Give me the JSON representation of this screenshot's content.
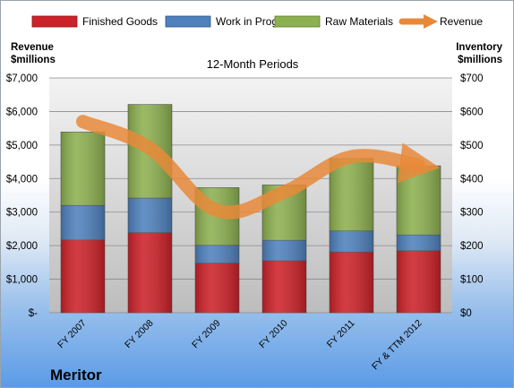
{
  "chart_data": {
    "type": "bar",
    "stacked": true,
    "title": "12-Month Periods",
    "company": "Meritor",
    "left_axis_label": [
      "Revenue",
      "$millions"
    ],
    "right_axis_label": [
      "Inventory",
      "$millions"
    ],
    "left_axis_ticks": [
      "$-",
      "$1,000",
      "$2,000",
      "$3,000",
      "$4,000",
      "$5,000",
      "$6,000",
      "$7,000"
    ],
    "right_axis_ticks": [
      "$0",
      "$100",
      "$200",
      "$300",
      "$400",
      "$500",
      "$600",
      "$700"
    ],
    "left_ylim": [
      0,
      7000
    ],
    "right_ylim": [
      0,
      700
    ],
    "grid": true,
    "legend_position": "top",
    "categories": [
      "FY 2007",
      "FY 2008",
      "FY 2009",
      "FY 2010",
      "FY 2011",
      "FY & TTM 2012"
    ],
    "series": [
      {
        "name": "Finished Goods",
        "axis": "right",
        "color": "#cc2229",
        "values": [
          217,
          239,
          148,
          155,
          181,
          185
        ]
      },
      {
        "name": "Work in Progress",
        "axis": "right",
        "color": "#4f81bd",
        "values": [
          103,
          103,
          53,
          61,
          63,
          47
        ]
      },
      {
        "name": "Raw Materials",
        "axis": "right",
        "color": "#8db050",
        "values": [
          219,
          279,
          172,
          165,
          216,
          206
        ]
      },
      {
        "name": "Revenue",
        "axis": "left",
        "type": "line",
        "color": "#e8893a",
        "values": [
          5700,
          4900,
          3050,
          3600,
          4650,
          4400
        ]
      }
    ]
  }
}
